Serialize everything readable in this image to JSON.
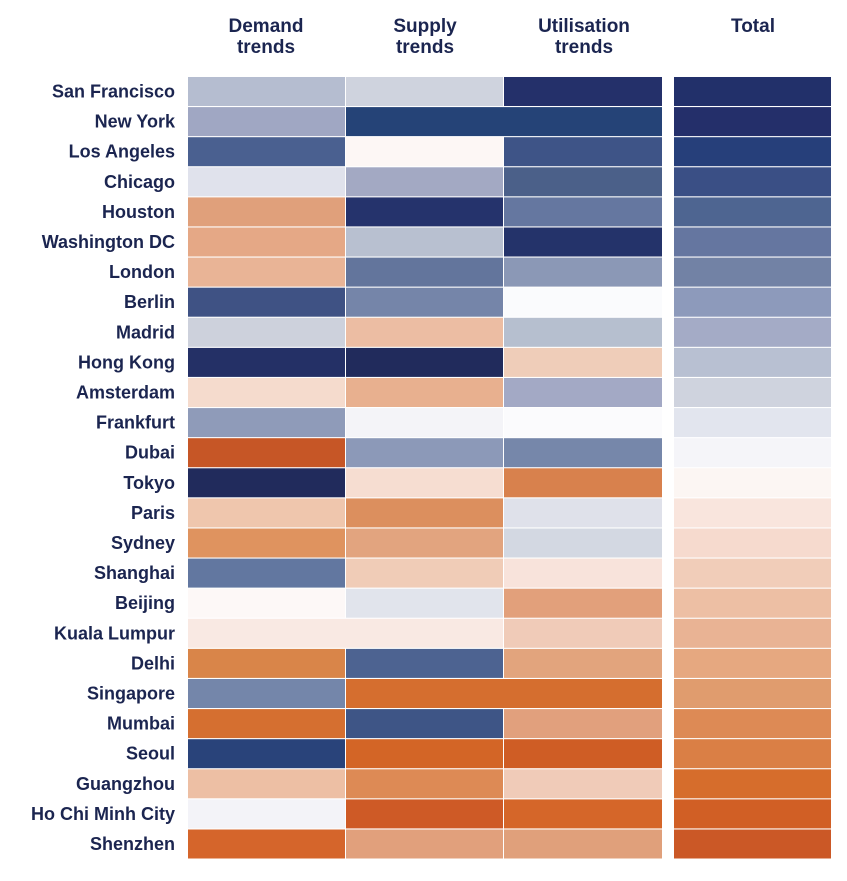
{
  "chart_data": {
    "type": "heatmap",
    "title": "",
    "columns": [
      {
        "key": "demand",
        "label_lines": [
          "Demand",
          "trends"
        ]
      },
      {
        "key": "supply",
        "label_lines": [
          "Supply",
          "trends"
        ]
      },
      {
        "key": "utilisation",
        "label_lines": [
          "Utilisation",
          "trends"
        ]
      },
      {
        "key": "total",
        "label_lines": [
          "Total"
        ]
      }
    ],
    "rows": [
      {
        "city": "San Francisco",
        "cells": [
          "#b5bdd0",
          "#cfd3de",
          "#24306a",
          "#22306a"
        ]
      },
      {
        "city": "New York",
        "cells": [
          "#a0a7c3",
          "#254377",
          "#254377",
          "#242f6a"
        ]
      },
      {
        "city": "Los Angeles",
        "cells": [
          "#4a6090",
          "#fdf7f5",
          "#3e5487",
          "#263f7a"
        ]
      },
      {
        "city": "Chicago",
        "cells": [
          "#e0e2ec",
          "#a3a9c3",
          "#4b6089",
          "#3a4f85"
        ]
      },
      {
        "city": "Houston",
        "cells": [
          "#e0a07b",
          "#25336c",
          "#6577a0",
          "#4e6591"
        ]
      },
      {
        "city": "Washington DC",
        "cells": [
          "#e5a886",
          "#b8c0d0",
          "#24336a",
          "#6576a0"
        ]
      },
      {
        "city": "London",
        "cells": [
          "#e9b496",
          "#63759c",
          "#8b98b6",
          "#7282a5"
        ]
      },
      {
        "city": "Berlin",
        "cells": [
          "#3f5284",
          "#7585a9",
          "#fafbfd",
          "#8d9abb"
        ]
      },
      {
        "city": "Madrid",
        "cells": [
          "#cdd1dc",
          "#ecbda3",
          "#b6bfcf",
          "#a4abc6"
        ]
      },
      {
        "city": "Hong Kong",
        "cells": [
          "#243066",
          "#212b5c",
          "#efcdb9",
          "#b8c0d2"
        ]
      },
      {
        "city": "Amsterdam",
        "cells": [
          "#f5dbcd",
          "#e8b08f",
          "#a3a9c5",
          "#cfd3de"
        ]
      },
      {
        "city": "Frankfurt",
        "cells": [
          "#8f9bb9",
          "#f4f4f8",
          "#fbfbfd",
          "#e2e5ee"
        ]
      },
      {
        "city": "Dubai",
        "cells": [
          "#c65626",
          "#8c99b8",
          "#7687aa",
          "#f5f5f9"
        ]
      },
      {
        "city": "Tokyo",
        "cells": [
          "#212b5c",
          "#f6ddd1",
          "#d8814d",
          "#fcf6f3"
        ]
      },
      {
        "city": "Paris",
        "cells": [
          "#efc6ad",
          "#dc8f5e",
          "#dfe1ea",
          "#f9e5dd"
        ]
      },
      {
        "city": "Sydney",
        "cells": [
          "#df935f",
          "#e2a47f",
          "#d3d8e2",
          "#f6dace"
        ]
      },
      {
        "city": "Shanghai",
        "cells": [
          "#6277a0",
          "#f0ccb7",
          "#f8e3db",
          "#f1cdb9"
        ]
      },
      {
        "city": "Beijing",
        "cells": [
          "#fdf8f7",
          "#e1e4ec",
          "#e2a07b",
          "#edbfa4"
        ]
      },
      {
        "city": "Kuala Lumpur",
        "cells": [
          "#f9e9e3",
          "#f9e9e3",
          "#f0cbb8",
          "#e9b394"
        ]
      },
      {
        "city": "Delhi",
        "cells": [
          "#d98549",
          "#4d6391",
          "#e2a47d",
          "#e6a880"
        ]
      },
      {
        "city": "Singapore",
        "cells": [
          "#7486aa",
          "#d56e2f",
          "#d56e2f",
          "#e09c6e"
        ]
      },
      {
        "city": "Mumbai",
        "cells": [
          "#d56f30",
          "#3e5586",
          "#e1a07d",
          "#dd8a55"
        ]
      },
      {
        "city": "Seoul",
        "cells": [
          "#29437a",
          "#d36526",
          "#cf5d25",
          "#da7f45"
        ]
      },
      {
        "city": "Guangzhou",
        "cells": [
          "#edbfa4",
          "#dd8a55",
          "#f0cbb8",
          "#d66d2c"
        ]
      },
      {
        "city": "Ho Chi Minh City",
        "cells": [
          "#f3f3f8",
          "#ce5a26",
          "#d56629",
          "#d15f25"
        ]
      },
      {
        "city": "Shenzhen",
        "cells": [
          "#d5652b",
          "#e1a07c",
          "#e0a07b",
          "#cb5826"
        ]
      }
    ],
    "merged_cells": [
      {
        "city": "New York",
        "columns": [
          "supply",
          "utilisation"
        ]
      },
      {
        "city": "Kuala Lumpur",
        "columns": [
          "demand",
          "supply"
        ]
      },
      {
        "city": "Singapore",
        "columns": [
          "supply",
          "utilisation"
        ]
      }
    ],
    "color_scale": {
      "low": "#cb5826",
      "mid": "#ffffff",
      "high": "#22306a"
    }
  }
}
